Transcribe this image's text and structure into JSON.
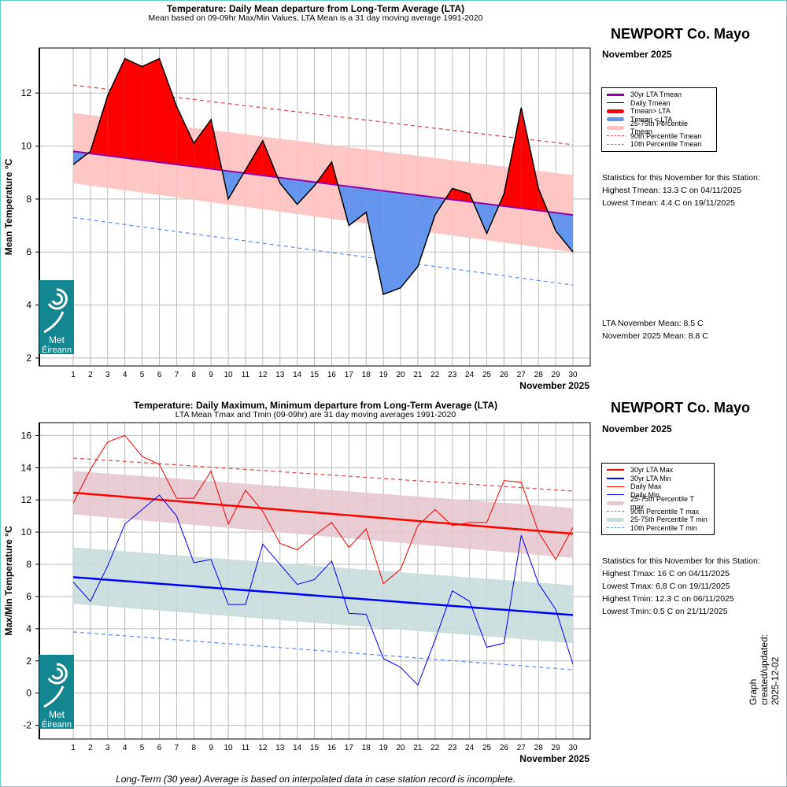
{
  "colors": {
    "above": "#ff0000",
    "below": "#6495ed",
    "band_mean": "#ffc0c0",
    "p90": "#d9534f",
    "p10": "#6495ed",
    "lta_mean": "#9400aa",
    "band_max": "#e6c8cf",
    "band_min": "#c8dcdc",
    "lta_max": "#ff0000",
    "lta_min": "#0000ff",
    "frame": "#66cccc",
    "logo": "#14868f"
  },
  "logo_text": "Met Éireann",
  "footer": "Long-Term (30 year) Average is based on interpolated data in case station record is incomplete.",
  "updated": "Graph created/updated:  2025-12-02",
  "panels": [
    {
      "title": "Temperature: Daily Mean departure from Long-Term Average (LTA)",
      "subtitle": "Mean based on 09-09hr Max/Min Values, LTA Mean is a 31 day moving average 1991-2020",
      "station": "NEWPORT Co. Mayo",
      "month": "November 2025",
      "legend": [
        "30yr LTA Tmean",
        "Daily Tmean",
        "Tmean> LTA",
        "Tmean < LTA",
        "25-75th Percentile Tmean",
        "90th Percentile Tmean",
        "10th Percentile Tmean"
      ],
      "stats": [
        "Statistics for this November for this Station:",
        "Highest Tmean: 13.3 C on 04/11/2025",
        "Lowest Tmean: 4.4 C on 19/11/2025"
      ],
      "means": [
        "LTA November Mean: 8.5 C",
        "November 2025 Mean: 8.8 C"
      ]
    },
    {
      "title": "Temperature: Daily Maximum, Minimum departure from Long-Term Average (LTA)",
      "subtitle": "LTA Mean Tmax and Tmin (09-09hr) are 31 day moving averages 1991-2020",
      "station": "NEWPORT Co. Mayo",
      "month": "November 2025",
      "legend": [
        "30yr LTA Max",
        "30yr LTA Min",
        "Daily Max",
        "Daily Min",
        "25-75th Percentile T max",
        "90th Percentile T max",
        "25-75th Percentile T min",
        "10th Percentile T min"
      ],
      "stats": [
        "Statistics for this November for this Station:",
        "Highest Tmax: 16 C on 04/11/2025",
        "Lowest Tmax: 6.8 C on 19/11/2025",
        "Highest Tmin: 12.3 C on 06/11/2025",
        "Lowest Tmin: 0.5 C on 21/11/2025"
      ]
    }
  ],
  "chart_data": [
    {
      "type": "area",
      "xlabel": "November 2025",
      "ylabel": "Mean Temperature °C",
      "ylim": [
        1.7,
        13.7
      ],
      "yticks": [
        2,
        4,
        6,
        8,
        10,
        12
      ],
      "grid": true,
      "legend": "right",
      "x": [
        1,
        2,
        3,
        4,
        5,
        6,
        7,
        8,
        9,
        10,
        11,
        12,
        13,
        14,
        15,
        16,
        17,
        18,
        19,
        20,
        21,
        22,
        23,
        24,
        25,
        26,
        27,
        28,
        29,
        30
      ],
      "daily_tmean": [
        9.3,
        9.8,
        11.9,
        13.3,
        13.0,
        13.3,
        11.5,
        10.1,
        11.0,
        8.0,
        9.1,
        10.2,
        8.6,
        7.8,
        8.5,
        9.4,
        7.0,
        7.5,
        4.4,
        4.65,
        5.45,
        7.4,
        8.4,
        8.2,
        6.7,
        8.2,
        11.45,
        8.4,
        6.8,
        6.0
      ],
      "lta_tmean": [
        9.8,
        7.4
      ],
      "p25": [
        8.6,
        6.0
      ],
      "p75": [
        11.25,
        8.9
      ],
      "p90": [
        12.3,
        10.05
      ],
      "p10": [
        7.3,
        4.75
      ]
    },
    {
      "type": "line",
      "xlabel": "November 2025",
      "ylabel": "Max/Min Temperature °C",
      "ylim": [
        -2.85,
        16.8
      ],
      "yticks": [
        -2,
        0,
        2,
        4,
        6,
        8,
        10,
        12,
        14,
        16
      ],
      "grid": true,
      "legend": "right",
      "x": [
        1,
        2,
        3,
        4,
        5,
        6,
        7,
        8,
        9,
        10,
        11,
        12,
        13,
        14,
        15,
        16,
        17,
        18,
        19,
        20,
        21,
        22,
        23,
        24,
        25,
        26,
        27,
        28,
        29,
        30
      ],
      "daily_max": [
        11.8,
        13.9,
        15.6,
        16.0,
        14.7,
        14.2,
        12.1,
        12.1,
        13.8,
        10.5,
        12.6,
        11.3,
        9.3,
        8.9,
        9.8,
        10.6,
        9.05,
        10.2,
        6.8,
        7.7,
        10.4,
        11.4,
        10.4,
        10.6,
        10.6,
        13.2,
        13.1,
        10.0,
        8.3,
        10.3
      ],
      "daily_min": [
        6.9,
        5.7,
        7.9,
        10.5,
        11.4,
        12.3,
        11.0,
        8.1,
        8.3,
        5.5,
        5.5,
        9.25,
        8.0,
        6.75,
        7.05,
        8.2,
        4.95,
        4.9,
        2.15,
        1.6,
        0.5,
        3.3,
        6.35,
        5.7,
        2.85,
        3.1,
        9.8,
        6.8,
        5.2,
        1.8
      ],
      "lta_max": [
        12.45,
        9.9
      ],
      "lta_min": [
        7.2,
        4.85
      ],
      "max_p25": [
        11.1,
        8.4
      ],
      "max_p75": [
        13.8,
        11.5
      ],
      "max_p90": [
        14.6,
        12.55
      ],
      "min_p25": [
        5.55,
        3.1
      ],
      "min_p75": [
        9.05,
        6.7
      ],
      "min_p10": [
        3.8,
        1.45
      ]
    }
  ]
}
